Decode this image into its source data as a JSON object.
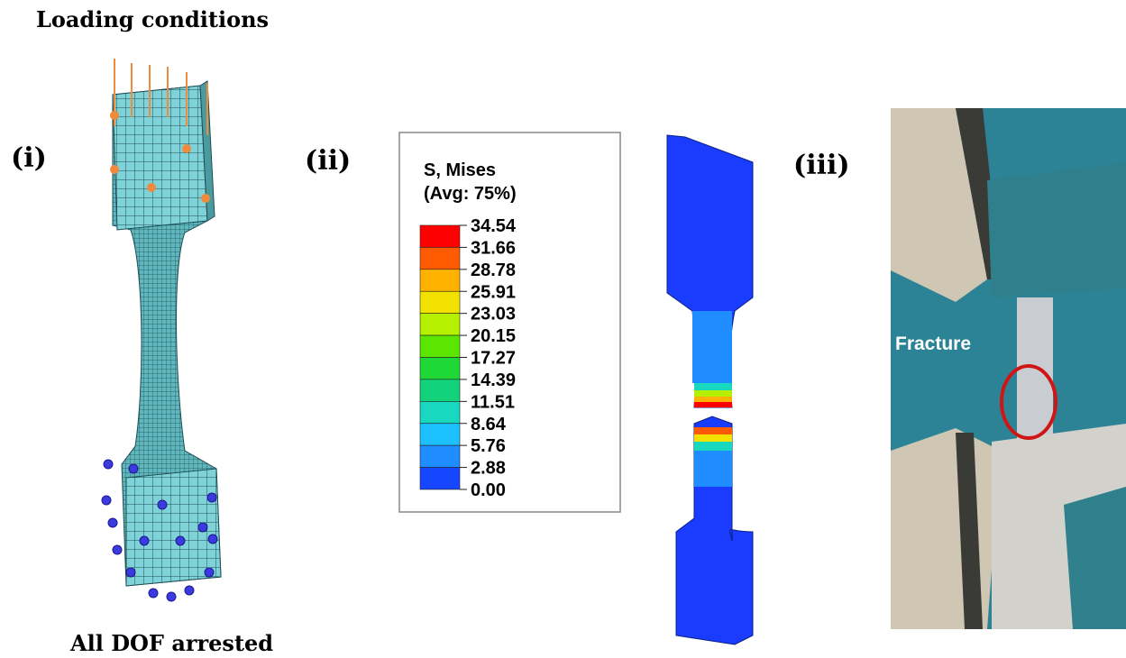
{
  "labels": {
    "top": "Loading conditions",
    "bottom": "All DOF arrested",
    "panel_1": "(i)",
    "panel_2": "(ii)",
    "panel_3": "(iii)"
  },
  "legend": {
    "title": "S, Mises",
    "subtitle": "(Avg: 75%)",
    "levels": [
      "34.54",
      "31.66",
      "28.78",
      "25.91",
      "23.03",
      "20.15",
      "17.27",
      "14.39",
      "11.51",
      "8.64",
      "5.76",
      "2.88",
      "0.00"
    ],
    "colors": [
      "#ff0000",
      "#ff5a00",
      "#ffb300",
      "#f3e100",
      "#b4f000",
      "#5ae600",
      "#1fd838",
      "#12d27a",
      "#19d8c0",
      "#1cc0ff",
      "#1f8cff",
      "#1646ff"
    ]
  },
  "photo": {
    "annotation": "Fracture"
  }
}
